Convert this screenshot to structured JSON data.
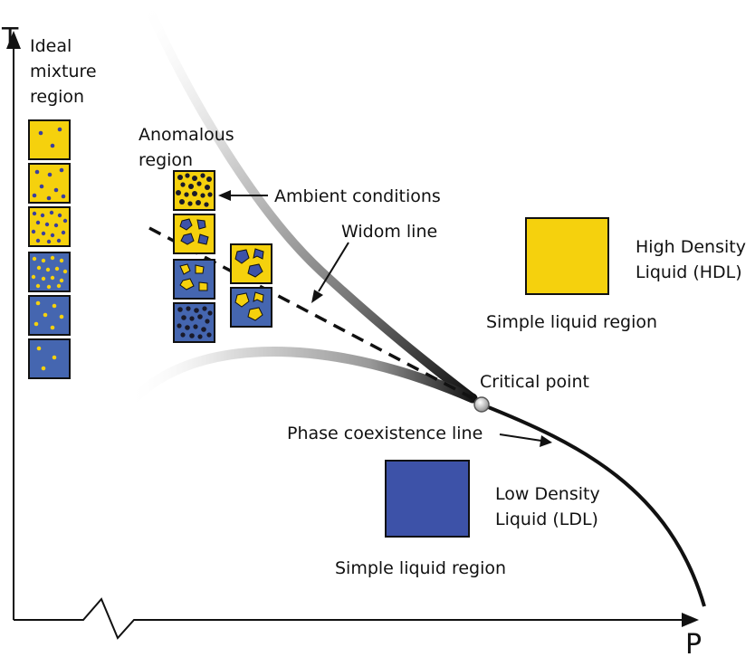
{
  "axes": {
    "x_label": "P",
    "y_label": "T"
  },
  "labels": {
    "ideal_line1": "Ideal",
    "ideal_line2": "mixture",
    "ideal_line3": "region",
    "anomalous_line1": "Anomalous",
    "anomalous_line2": "region",
    "ambient": "Ambient conditions",
    "widom": "Widom line",
    "hdl_line1": "High Density",
    "hdl_line2": "Liquid (HDL)",
    "simple_upper": "Simple liquid region",
    "critical": "Critical point",
    "coexistence": "Phase coexistence line",
    "ldl_line1": "Low Density",
    "ldl_line2": "Liquid (LDL)",
    "simple_lower": "Simple liquid region"
  },
  "colors": {
    "hdl_yellow": "#f5d10d",
    "ldl_blue": "#3d52a8",
    "panel_blue": "#4566b0",
    "dot_blue": "#3a3f9e",
    "dot_yellow": "#f5d10d",
    "line": "#111111"
  },
  "ideal_mixture_stack": [
    {
      "background": "yellow",
      "dots": "blue",
      "density": "few"
    },
    {
      "background": "yellow",
      "dots": "blue",
      "density": "some"
    },
    {
      "background": "yellow",
      "dots": "blue",
      "density": "many"
    },
    {
      "background": "blue",
      "dots": "yellow",
      "density": "many"
    },
    {
      "background": "blue",
      "dots": "yellow",
      "density": "some"
    },
    {
      "background": "blue",
      "dots": "yellow",
      "density": "few"
    }
  ],
  "anomalous_stack": [
    {
      "background": "yellow",
      "clusters": "black",
      "density": "dense"
    },
    {
      "background": "yellow",
      "clusters": "blue",
      "density": "blobs"
    },
    {
      "background": "blue",
      "clusters": "yellow",
      "density": "blobs"
    },
    {
      "background": "blue",
      "clusters": "black",
      "density": "dense"
    }
  ],
  "near_critical_stack": [
    {
      "background": "yellow",
      "clusters": "blue"
    },
    {
      "background": "blue",
      "clusters": "yellow"
    }
  ]
}
